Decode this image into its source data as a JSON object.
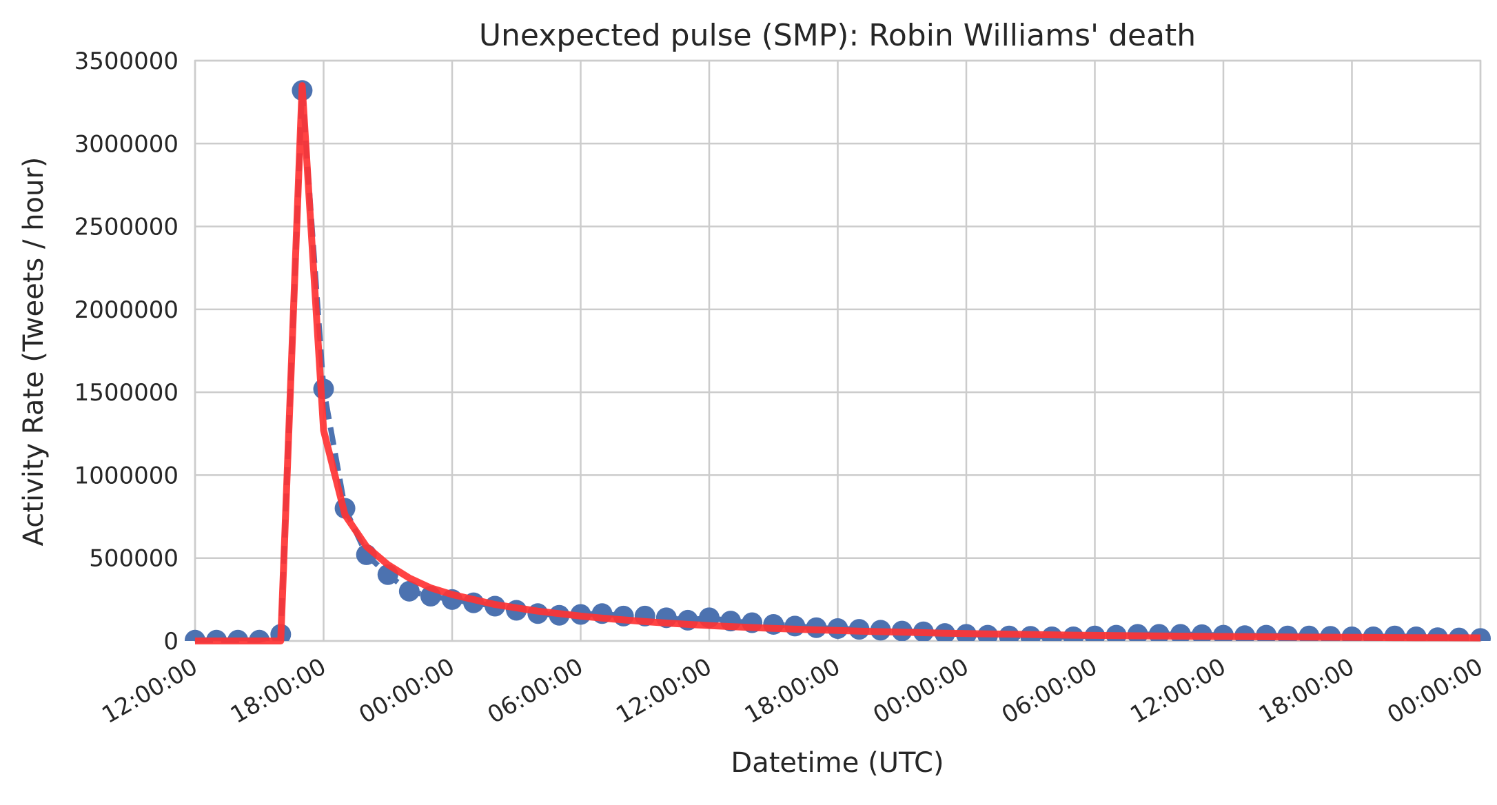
{
  "chart_data": {
    "type": "line",
    "title": "Unexpected pulse (SMP): Robin Williams' death",
    "xlabel": "Datetime (UTC)",
    "ylabel": "Activity Rate (Tweets / hour)",
    "x_unit": "hour",
    "xlim": [
      0,
      60
    ],
    "ylim": [
      0,
      3500000
    ],
    "grid": true,
    "x_tick_labels": [
      "12:00:00",
      "18:00:00",
      "00:00:00",
      "06:00:00",
      "12:00:00",
      "18:00:00",
      "00:00:00",
      "06:00:00",
      "12:00:00",
      "18:00:00",
      "00:00:00"
    ],
    "y_tick_labels": [
      "0",
      "500000",
      "1000000",
      "1500000",
      "2000000",
      "2500000",
      "3000000",
      "3500000"
    ],
    "series": [
      {
        "style": "scatter-dashed",
        "color": "#4C72B0",
        "x": [
          0,
          1,
          2,
          3,
          4,
          5,
          6,
          7,
          8,
          9,
          10,
          11,
          12,
          13,
          14,
          15,
          16,
          17,
          18,
          19,
          20,
          21,
          22,
          23,
          24,
          25,
          26,
          27,
          28,
          29,
          30,
          31,
          32,
          33,
          34,
          35,
          36,
          37,
          38,
          39,
          40,
          41,
          42,
          43,
          44,
          45,
          46,
          47,
          48,
          49,
          50,
          51,
          52,
          53,
          54,
          55,
          56,
          57,
          58,
          59,
          60
        ],
        "values": [
          5000,
          5000,
          5000,
          5000,
          40000,
          3320000,
          1520000,
          800000,
          520000,
          400000,
          300000,
          270000,
          250000,
          230000,
          210000,
          185000,
          165000,
          155000,
          160000,
          165000,
          150000,
          150000,
          140000,
          125000,
          140000,
          120000,
          110000,
          100000,
          90000,
          80000,
          75000,
          70000,
          65000,
          60000,
          55000,
          45000,
          40000,
          35000,
          30000,
          28000,
          25000,
          25000,
          30000,
          35000,
          40000,
          40000,
          40000,
          38000,
          35000,
          32000,
          35000,
          30000,
          30000,
          28000,
          25000,
          25000,
          30000,
          25000,
          20000,
          18000,
          15000
        ]
      },
      {
        "style": "line",
        "color": "#FF3333",
        "x": [
          0,
          1,
          2,
          3,
          4,
          5,
          6,
          7,
          8,
          9,
          10,
          11,
          12,
          13,
          14,
          15,
          16,
          17,
          18,
          19,
          20,
          21,
          22,
          23,
          24,
          25,
          26,
          27,
          28,
          29,
          30,
          31,
          32,
          33,
          34,
          35,
          36,
          37,
          38,
          39,
          40,
          41,
          42,
          43,
          44,
          45,
          46,
          47,
          48,
          49,
          50,
          51,
          52,
          53,
          54,
          55,
          56,
          57,
          58,
          59,
          60
        ],
        "values": [
          0,
          0,
          0,
          0,
          0,
          3350000,
          1270000,
          760000,
          570000,
          460000,
          380000,
          320000,
          280000,
          250000,
          220000,
          200000,
          180000,
          165000,
          150000,
          138000,
          127000,
          117000,
          108000,
          100000,
          93000,
          87000,
          81000,
          76000,
          71000,
          67000,
          63000,
          59000,
          56000,
          53000,
          50000,
          47000,
          45000,
          43000,
          41000,
          39000,
          37000,
          35000,
          33500,
          32000,
          31000,
          30000,
          29000,
          28000,
          27000,
          26000,
          25000,
          24000,
          23000,
          22500,
          22000,
          21000,
          20500,
          20000,
          19500,
          19000,
          18500
        ]
      }
    ]
  }
}
